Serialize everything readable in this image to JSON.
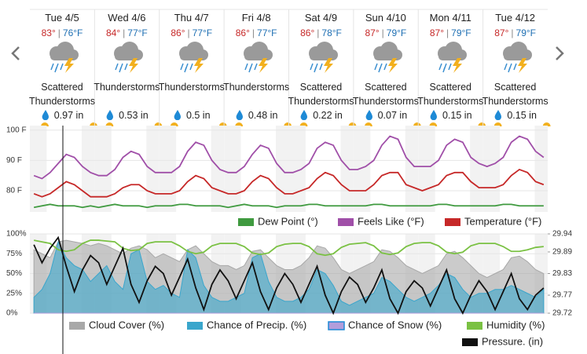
{
  "days": [
    {
      "day": "Tue 4/5",
      "high": "83°",
      "low": "76°F",
      "condition": "Scattered Thunderstorms",
      "precip": "0.97 in"
    },
    {
      "day": "Wed 4/6",
      "high": "84°",
      "low": "77°F",
      "condition": "Thunderstorms",
      "precip": "0.53 in"
    },
    {
      "day": "Thu 4/7",
      "high": "86°",
      "low": "77°F",
      "condition": "Thunderstorms",
      "precip": "0.5 in"
    },
    {
      "day": "Fri 4/8",
      "high": "86°",
      "low": "77°F",
      "condition": "Thunderstorms",
      "precip": "0.48 in"
    },
    {
      "day": "Sat 4/9",
      "high": "86°",
      "low": "78°F",
      "condition": "Scattered Thunderstorms",
      "precip": "0.22 in"
    },
    {
      "day": "Sun 4/10",
      "high": "87°",
      "low": "79°F",
      "condition": "Scattered Thunderstorms",
      "precip": "0.07 in"
    },
    {
      "day": "Mon 4/11",
      "high": "87°",
      "low": "79°F",
      "condition": "Scattered Thunderstorms",
      "precip": "0.15 in"
    },
    {
      "day": "Tue 4/12",
      "high": "87°",
      "low": "79°F",
      "condition": "Scattered Thunderstorms",
      "precip": "0.15 in"
    }
  ],
  "chart_data": [
    {
      "type": "line",
      "ylim": [
        73,
        101.5
      ],
      "yticks": [
        {
          "value": 100,
          "label": "100 F"
        },
        {
          "value": 90,
          "label": "90 F"
        },
        {
          "value": 80,
          "label": "80 F"
        }
      ],
      "grid": true,
      "series": [
        {
          "name": "Dew Point (°)",
          "color": "#3f9a3f",
          "kind": "line",
          "values": [
            74.5,
            75,
            75.5,
            75,
            75,
            75,
            74.5,
            75,
            74.5,
            75,
            75.5,
            75,
            75,
            75,
            74.5,
            75,
            75,
            75,
            75.5,
            75.5,
            75,
            75,
            75,
            75,
            74.5,
            75,
            75.5,
            75,
            75,
            75,
            74.5,
            75,
            75,
            75,
            75.5,
            75.5,
            75,
            75,
            75,
            75,
            75,
            75,
            75.5,
            75.5,
            75,
            75,
            75,
            75,
            75,
            75,
            75.5,
            75.5,
            75,
            75,
            75,
            75,
            75,
            75,
            75.5,
            75.5,
            75,
            75,
            75,
            75
          ]
        },
        {
          "name": "Feels Like (°F)",
          "color": "#a04fa8",
          "kind": "line",
          "values": [
            85,
            84,
            86,
            89,
            92,
            91,
            88,
            86,
            85,
            85,
            87,
            91,
            93,
            92,
            88,
            86,
            86,
            86,
            88,
            93,
            96,
            95,
            90,
            87,
            86,
            86,
            88,
            92,
            95,
            94,
            89,
            86,
            86,
            87,
            89,
            94,
            96,
            95,
            90,
            87,
            87,
            88,
            90,
            95,
            98,
            97,
            91,
            88,
            88,
            88,
            90,
            95,
            97,
            96,
            91,
            89,
            88,
            89,
            91,
            96,
            98,
            97,
            93,
            91
          ]
        },
        {
          "name": "Temperature (°F)",
          "color": "#c62828",
          "kind": "line",
          "values": [
            79,
            78,
            79,
            81,
            83,
            82,
            80,
            78,
            78,
            78,
            79,
            81,
            82,
            82,
            80,
            79,
            79,
            79,
            80,
            83,
            85,
            84,
            81,
            80,
            79,
            79,
            80,
            83,
            85,
            84,
            81,
            79,
            79,
            80,
            81,
            84,
            86,
            85,
            82,
            80,
            80,
            80,
            82,
            85,
            86,
            86,
            82,
            81,
            80,
            81,
            82,
            85,
            86,
            86,
            83,
            81,
            81,
            81,
            82,
            85,
            87,
            86,
            83,
            82
          ]
        }
      ]
    },
    {
      "type": "line",
      "ylim": [
        0,
        100
      ],
      "yticks": [
        {
          "value": 100,
          "label": "100%"
        },
        {
          "value": 75,
          "label": "75%"
        },
        {
          "value": 50,
          "label": "50%"
        },
        {
          "value": 25,
          "label": "25%"
        },
        {
          "value": 0,
          "label": "0%"
        }
      ],
      "y2lim": [
        29.72,
        29.94
      ],
      "y2ticks": [
        29.94,
        29.89,
        29.83,
        29.77,
        29.72
      ],
      "grid": true,
      "series": [
        {
          "name": "Cloud Cover (%)",
          "color": "#a8a8a8",
          "kind": "area",
          "values": [
            80,
            75,
            70,
            90,
            92,
            90,
            88,
            85,
            88,
            85,
            80,
            75,
            82,
            85,
            80,
            70,
            75,
            70,
            65,
            80,
            85,
            75,
            65,
            60,
            60,
            55,
            60,
            78,
            80,
            70,
            60,
            55,
            55,
            60,
            70,
            85,
            82,
            70,
            55,
            50,
            55,
            60,
            65,
            80,
            78,
            70,
            60,
            55,
            50,
            55,
            60,
            75,
            78,
            70,
            60,
            50,
            45,
            50,
            55,
            70,
            72,
            65,
            55,
            50
          ]
        },
        {
          "name": "Chance of Precip. (%)",
          "color": "#3aa6cc",
          "kind": "area",
          "values": [
            20,
            30,
            50,
            90,
            70,
            60,
            55,
            40,
            50,
            60,
            40,
            30,
            75,
            80,
            40,
            30,
            35,
            25,
            20,
            80,
            70,
            35,
            20,
            15,
            15,
            20,
            25,
            70,
            75,
            40,
            20,
            15,
            15,
            20,
            30,
            55,
            50,
            35,
            15,
            10,
            15,
            20,
            25,
            45,
            40,
            30,
            20,
            15,
            20,
            25,
            35,
            50,
            45,
            30,
            20,
            25,
            25,
            30,
            30,
            35,
            30,
            25,
            20,
            30
          ]
        },
        {
          "name": "Chance of Snow (%)",
          "color": "#b39ddb",
          "kind": "area",
          "values": [
            0,
            0,
            0,
            0,
            0,
            0,
            0,
            0,
            0,
            0,
            0,
            0,
            0,
            0,
            0,
            0,
            0,
            0,
            0,
            0,
            0,
            0,
            0,
            0,
            0,
            0,
            0,
            0,
            0,
            0,
            0,
            0,
            0,
            0,
            0,
            0,
            0,
            0,
            0,
            0,
            0,
            0,
            0,
            0,
            0,
            0,
            0,
            0,
            0,
            0,
            0,
            0,
            0,
            0,
            0,
            0,
            0,
            0,
            0,
            0,
            0,
            0,
            0,
            0
          ]
        },
        {
          "name": "Humidity (%)",
          "color": "#7ac143",
          "kind": "line",
          "values": [
            92,
            90,
            88,
            80,
            78,
            80,
            88,
            92,
            92,
            91,
            90,
            82,
            79,
            80,
            88,
            90,
            90,
            90,
            85,
            78,
            75,
            77,
            85,
            88,
            88,
            88,
            84,
            76,
            74,
            76,
            84,
            87,
            88,
            88,
            84,
            75,
            73,
            75,
            83,
            87,
            88,
            89,
            85,
            76,
            74,
            76,
            84,
            88,
            89,
            89,
            85,
            77,
            75,
            77,
            85,
            88,
            88,
            88,
            84,
            78,
            78,
            80,
            83,
            84
          ]
        },
        {
          "name": "Pressure. (in)",
          "color": "#111111",
          "kind": "line",
          "axis": "y2",
          "values": [
            29.91,
            29.86,
            29.9,
            29.93,
            29.85,
            29.78,
            29.84,
            29.88,
            29.86,
            29.8,
            29.85,
            29.9,
            29.8,
            29.75,
            29.81,
            29.85,
            29.83,
            29.77,
            29.82,
            29.87,
            29.79,
            29.73,
            29.8,
            29.84,
            29.81,
            29.76,
            29.81,
            29.86,
            29.78,
            29.73,
            29.79,
            29.83,
            29.8,
            29.75,
            29.8,
            29.85,
            29.77,
            29.72,
            29.78,
            29.82,
            29.8,
            29.75,
            29.79,
            29.84,
            29.76,
            29.72,
            29.78,
            29.81,
            29.79,
            29.74,
            29.79,
            29.84,
            29.76,
            29.72,
            29.77,
            29.81,
            29.78,
            29.73,
            29.78,
            29.83,
            29.76,
            29.73,
            29.77,
            29.79
          ]
        }
      ]
    }
  ]
}
